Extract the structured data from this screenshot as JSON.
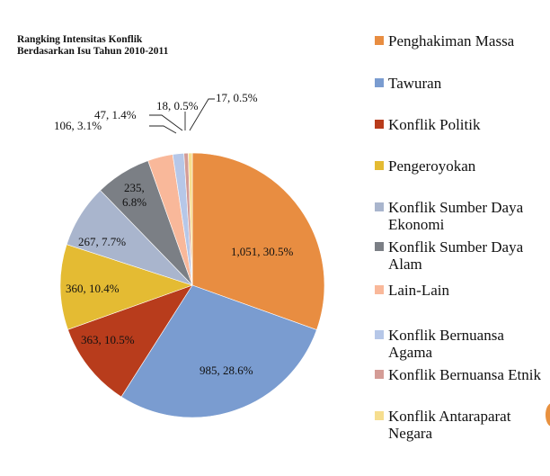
{
  "chart_data": {
    "type": "pie",
    "title": "Rangking Intensitas Konflik Berdasarkan Isu Tahun 2010-2011",
    "title_lines": [
      "Rangking Intensitas Konflik",
      "Berdasarkan Isu Tahun 2010-2011"
    ],
    "categories": [
      "Penghakiman Massa",
      "Tawuran",
      "Konflik Politik",
      "Pengeroyokan",
      "Konflik Sumber Daya Ekonomi",
      "Konflik Sumber Daya Alam",
      "Lain-Lain",
      "Konflik Bernuansa Agama",
      "Konflik Bernuansa Etnik",
      "Konflik Antaraparat Negara"
    ],
    "values": [
      1051,
      985,
      363,
      360,
      267,
      235,
      106,
      47,
      18,
      17
    ],
    "percentages": [
      30.5,
      28.6,
      10.5,
      10.4,
      7.7,
      6.8,
      3.1,
      1.4,
      0.5,
      0.5
    ],
    "data_labels": [
      "1,051, 30.5%",
      "985, 28.6%",
      "363, 10.5%",
      "360, 10.4%",
      "267, 7.7%",
      "235, 6.8%",
      "106, 3.1%",
      "47, 1.4%",
      "18, 0.5%",
      "17, 0.5%"
    ],
    "colors": [
      "#e88d41",
      "#7a9cd0",
      "#b83c1c",
      "#e4bb33",
      "#a9b5cd",
      "#7b7f85",
      "#f9b89a",
      "#b6c7e8",
      "#d49c96",
      "#f6de8f"
    ],
    "legend_position": "right",
    "start_angle": "12 o'clock, clockwise"
  },
  "legend": {
    "items": [
      {
        "label": "Penghakiman Massa",
        "color": "#e88d41"
      },
      {
        "label": "Tawuran",
        "color": "#7a9cd0"
      },
      {
        "label": "Konflik Politik",
        "color": "#b83c1c"
      },
      {
        "label": "Pengeroyokan",
        "color": "#e4bb33"
      },
      {
        "label": "Konflik Sumber Daya Ekonomi",
        "color": "#a9b5cd"
      },
      {
        "label": "Konflik Sumber Daya Alam",
        "color": "#7b7f85"
      },
      {
        "label": "Lain-Lain",
        "color": "#f9b89a"
      },
      {
        "label": "Konflik Bernuansa Agama",
        "color": "#b6c7e8"
      },
      {
        "label": "Konflik Bernuansa Etnik",
        "color": "#d49c96"
      },
      {
        "label": "Konflik Antaraparat Negara",
        "color": "#f6de8f"
      }
    ]
  }
}
